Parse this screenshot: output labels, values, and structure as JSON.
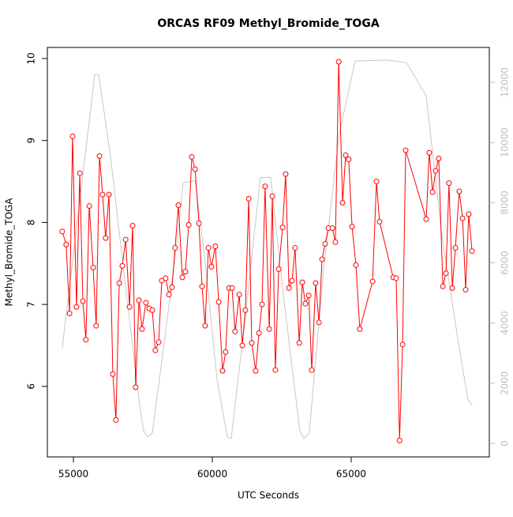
{
  "chart_data": {
    "type": "line",
    "title": "ORCAS RF09 Methyl_Bromide_TOGA",
    "xlabel": "UTC Seconds",
    "ylabel": "Methyl_Bromide_TOGA",
    "xlim": [
      54062,
      69972
    ],
    "xticks": [
      55000,
      60000,
      65000
    ],
    "ylim": [
      5.14,
      10.135
    ],
    "yticks": [
      6,
      7,
      8,
      9,
      10
    ],
    "y2lim": [
      -450,
      13160
    ],
    "y2ticks": [
      0,
      2000,
      4000,
      6000,
      8000,
      10000,
      12000
    ],
    "y2_axis_color": "#bebebe",
    "series": [
      {
        "color": "#ff0000",
        "markers": true,
        "x": [
          54600,
          54740,
          54860,
          54970,
          55110,
          55230,
          55340,
          55450,
          55570,
          55710,
          55820,
          55940,
          56050,
          56160,
          56280,
          56420,
          56530,
          56650,
          56760,
          56880,
          57020,
          57130,
          57240,
          57360,
          57470,
          57610,
          57730,
          57840,
          57950,
          58070,
          58180,
          58320,
          58440,
          58550,
          58660,
          58780,
          58920,
          59030,
          59150,
          59260,
          59380,
          59520,
          59630,
          59740,
          59860,
          59970,
          60110,
          60230,
          60370,
          60480,
          60600,
          60710,
          60820,
          60970,
          61080,
          61190,
          61310,
          61420,
          61560,
          61680,
          61790,
          61900,
          62050,
          62160,
          62270,
          62390,
          62530,
          62640,
          62760,
          62870,
          62980,
          63130,
          63240,
          63350,
          63470,
          63580,
          63720,
          63840,
          63950,
          64060,
          64180,
          64320,
          64430,
          64550,
          64690,
          64800,
          64910,
          65030,
          65170,
          65310,
          65770,
          65910,
          66020,
          66510,
          66620,
          66740,
          66850,
          66960,
          67700,
          67810,
          67930,
          68040,
          68150,
          68300,
          68410,
          68520,
          68640,
          68750,
          68890,
          69010,
          69120,
          69230,
          69350
        ],
        "values": [
          7.89,
          7.73,
          6.89,
          9.05,
          6.97,
          8.6,
          7.04,
          6.57,
          8.2,
          7.45,
          6.74,
          8.81,
          8.34,
          7.81,
          8.34,
          6.15,
          5.59,
          7.26,
          7.47,
          7.79,
          6.97,
          7.96,
          5.99,
          7.05,
          6.7,
          7.02,
          6.95,
          6.93,
          6.44,
          6.54,
          7.29,
          7.32,
          7.12,
          7.21,
          7.69,
          8.21,
          7.33,
          7.4,
          7.97,
          8.8,
          8.65,
          7.99,
          7.22,
          6.74,
          7.69,
          7.46,
          7.71,
          7.03,
          6.19,
          6.42,
          7.2,
          7.2,
          6.67,
          7.12,
          6.5,
          6.93,
          8.29,
          6.53,
          6.19,
          6.65,
          7.0,
          8.44,
          6.7,
          8.32,
          6.2,
          7.43,
          7.94,
          8.59,
          7.2,
          7.29,
          7.69,
          6.53,
          7.27,
          7.01,
          7.11,
          6.2,
          7.26,
          6.78,
          7.55,
          7.74,
          7.93,
          7.93,
          7.76,
          9.96,
          8.24,
          8.82,
          8.77,
          7.95,
          7.48,
          6.7,
          7.28,
          8.5,
          8.01,
          7.33,
          7.32,
          5.34,
          6.51,
          8.88,
          8.04,
          8.85,
          8.37,
          8.63,
          8.78,
          7.22,
          7.38,
          8.48,
          7.2,
          7.69,
          8.38,
          8.05,
          7.18,
          8.1,
          7.65
        ]
      },
      {
        "color": "#c8c8c8",
        "axis": "y2",
        "markers": false,
        "x": [
          54600,
          55770,
          55910,
          56340,
          56900,
          57410,
          57530,
          57670,
          57840,
          58320,
          58750,
          58950,
          59380,
          59740,
          60170,
          60540,
          60680,
          61160,
          61730,
          62100,
          62580,
          63150,
          63300,
          63490,
          64010,
          64570,
          65140,
          66280,
          66990,
          67700,
          68270,
          68840,
          69200,
          69350
        ],
        "values": [
          3180,
          12260,
          12260,
          9500,
          5030,
          1080,
          420,
          210,
          340,
          3710,
          6870,
          8660,
          8740,
          6080,
          2130,
          210,
          160,
          3970,
          8840,
          8840,
          4760,
          420,
          160,
          340,
          5820,
          10290,
          12710,
          12740,
          12660,
          11550,
          6870,
          3450,
          1470,
          1260
        ]
      }
    ]
  }
}
